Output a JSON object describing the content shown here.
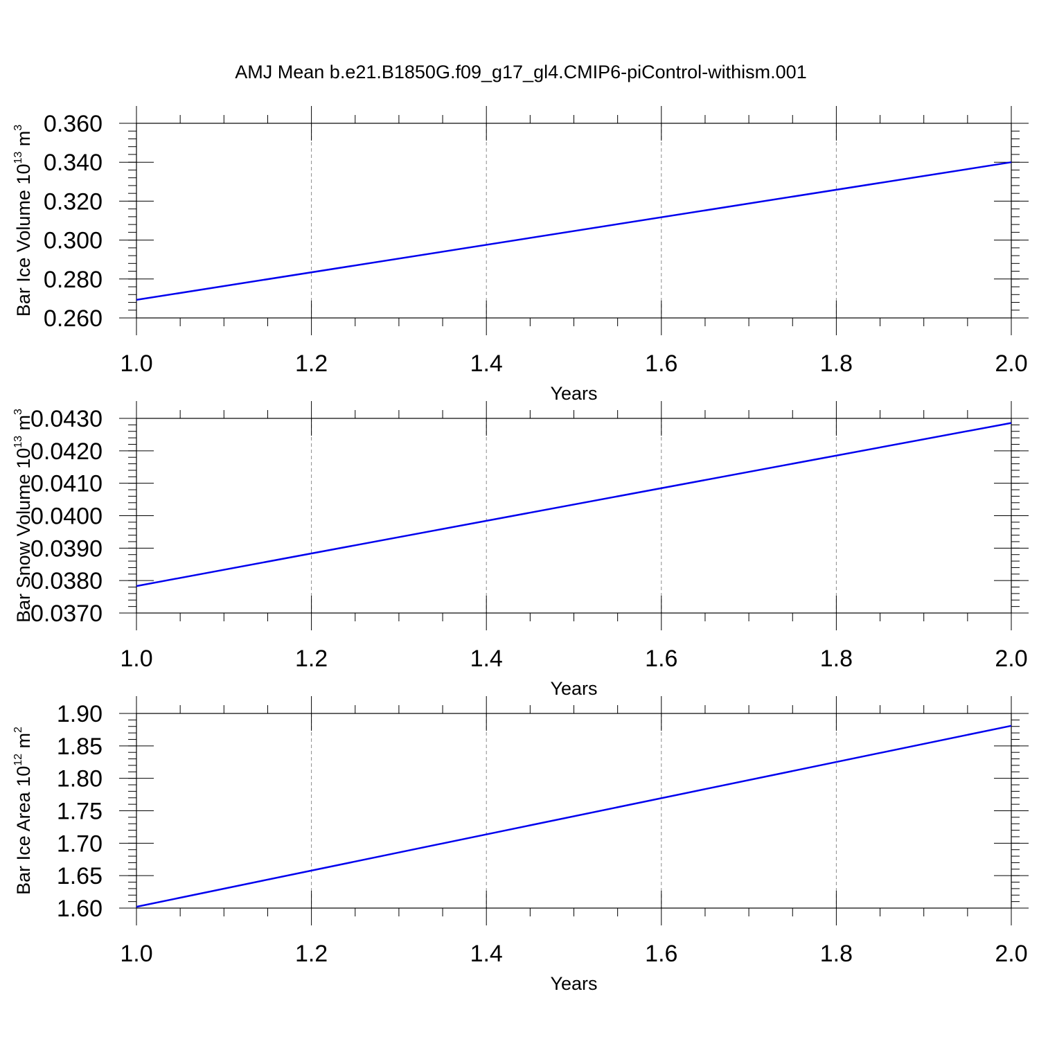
{
  "title": "AMJ Mean b.e21.B1850G.f09_g17_gl4.CMIP6-piControl-withism.001",
  "chart_data": [
    {
      "type": "line",
      "ylabel": "Bar Ice Volume 10",
      "ylabel_sup": "13",
      "ylabel_unit": " m",
      "ylabel_unit_sup": "3",
      "xlabel": "Years",
      "xlim": [
        1.0,
        2.0
      ],
      "ylim": [
        0.26,
        0.36
      ],
      "yticks": [
        0.26,
        0.28,
        0.3,
        0.32,
        0.34,
        0.36
      ],
      "ytick_labels": [
        "0.260",
        "0.280",
        "0.300",
        "0.320",
        "0.340",
        "0.360"
      ],
      "xticks": [
        1.0,
        1.2,
        1.4,
        1.6,
        1.8,
        2.0
      ],
      "xtick_labels": [
        "1.0",
        "1.2",
        "1.4",
        "1.6",
        "1.8",
        "2.0"
      ],
      "grid": true,
      "line_color": "#0000ee",
      "x": [
        1.0,
        2.0
      ],
      "y": [
        0.2693,
        0.34
      ]
    },
    {
      "type": "line",
      "ylabel": "Bar Snow Volume 10",
      "ylabel_sup": "13",
      "ylabel_unit": " m",
      "ylabel_unit_sup": "3",
      "xlabel": "Years",
      "xlim": [
        1.0,
        2.0
      ],
      "ylim": [
        0.037,
        0.043
      ],
      "yticks": [
        0.037,
        0.038,
        0.039,
        0.04,
        0.041,
        0.042,
        0.043
      ],
      "ytick_labels": [
        "0.0370",
        "0.0380",
        "0.0390",
        "0.0400",
        "0.0410",
        "0.0420",
        "0.0430"
      ],
      "xticks": [
        1.0,
        1.2,
        1.4,
        1.6,
        1.8,
        2.0
      ],
      "xtick_labels": [
        "1.0",
        "1.2",
        "1.4",
        "1.6",
        "1.8",
        "2.0"
      ],
      "grid": true,
      "line_color": "#0000ee",
      "x": [
        1.0,
        2.0
      ],
      "y": [
        0.03783,
        0.04286
      ]
    },
    {
      "type": "line",
      "ylabel": "Bar Ice Area 10",
      "ylabel_sup": "12",
      "ylabel_unit": " m",
      "ylabel_unit_sup": "2",
      "xlabel": "Years",
      "xlim": [
        1.0,
        2.0
      ],
      "ylim": [
        1.6,
        1.9
      ],
      "yticks": [
        1.6,
        1.65,
        1.7,
        1.75,
        1.8,
        1.85,
        1.9
      ],
      "ytick_labels": [
        "1.60",
        "1.65",
        "1.70",
        "1.75",
        "1.80",
        "1.85",
        "1.90"
      ],
      "xticks": [
        1.0,
        1.2,
        1.4,
        1.6,
        1.8,
        2.0
      ],
      "xtick_labels": [
        "1.0",
        "1.2",
        "1.4",
        "1.6",
        "1.8",
        "2.0"
      ],
      "grid": true,
      "line_color": "#0000ee",
      "x": [
        1.0,
        2.0
      ],
      "y": [
        1.602,
        1.881
      ]
    }
  ]
}
